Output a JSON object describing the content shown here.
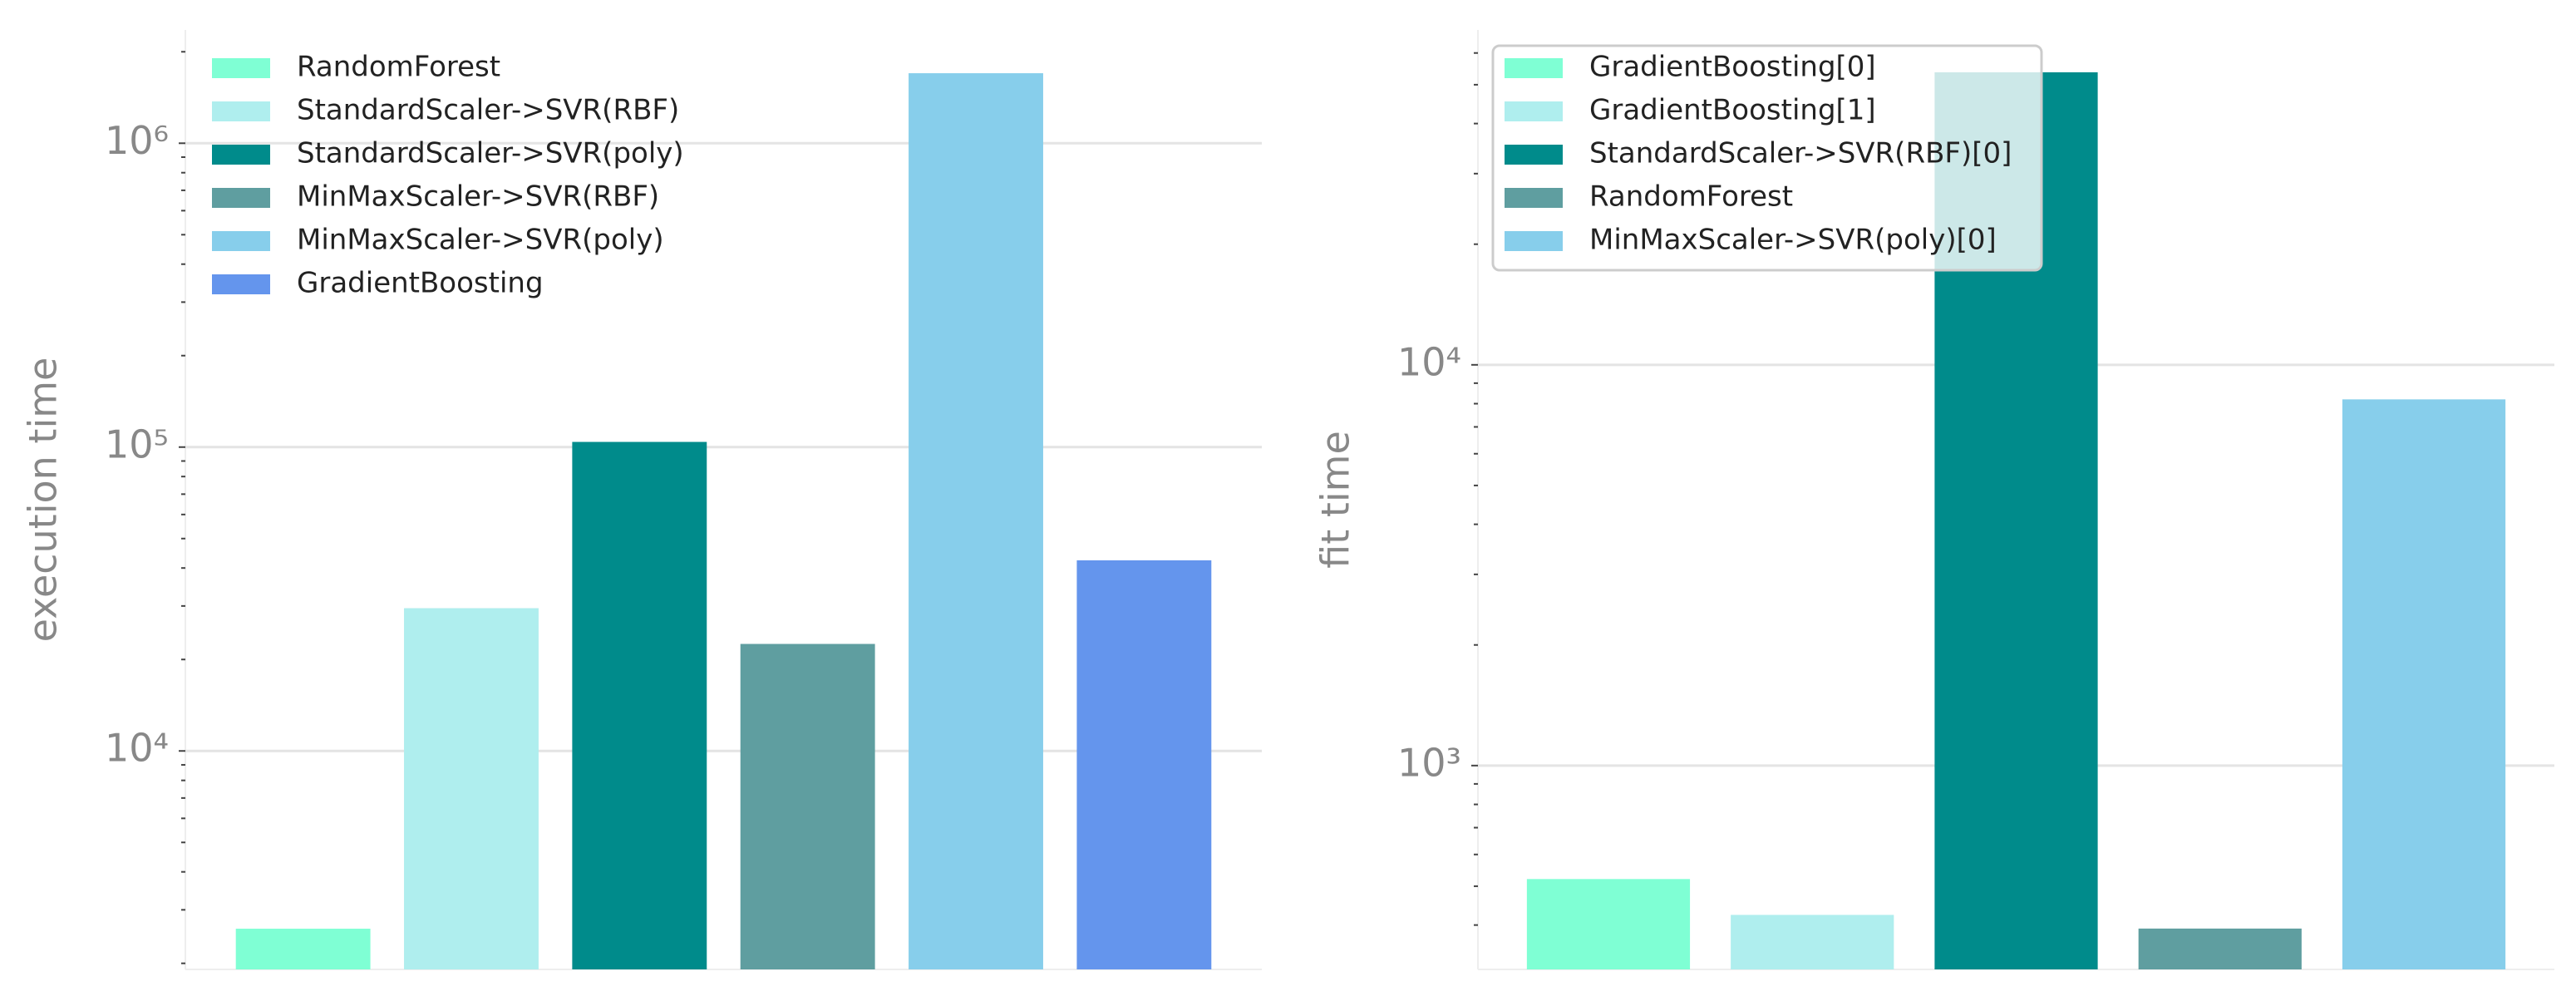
{
  "chart_data": [
    {
      "type": "bar",
      "ylabel": "execution time",
      "log_scale": true,
      "grid": true,
      "legend": "upper left",
      "legend_frame": false,
      "categories": [
        "RandomForest",
        "StandardScaler->SVR(RBF)",
        "StandardScaler->SVR(poly)",
        "MinMaxScaler->SVR(RBF)",
        "MinMaxScaler->SVR(poly)",
        "GradientBoosting"
      ],
      "values": [
        2600,
        29500,
        104000,
        22500,
        1700000,
        42400
      ],
      "colors": [
        "#7fffd4",
        "#afeeee",
        "#008b8b",
        "#5f9ea0",
        "#87ceeb",
        "#6495ed"
      ],
      "ylim": [
        1910,
        2360000
      ],
      "yticks": [
        {
          "value": 10000,
          "label": "10⁴"
        },
        {
          "value": 100000,
          "label": "10⁵"
        },
        {
          "value": 1000000,
          "label": "10⁶"
        }
      ],
      "minor_yticks": [
        2000,
        3000,
        4000,
        5000,
        6000,
        7000,
        8000,
        9000,
        20000,
        30000,
        40000,
        50000,
        60000,
        70000,
        80000,
        90000,
        200000,
        300000,
        400000,
        500000,
        600000,
        700000,
        800000,
        900000,
        2000000
      ]
    },
    {
      "type": "bar",
      "ylabel": "fit time",
      "log_scale": true,
      "grid": true,
      "legend": "upper left",
      "legend_frame": true,
      "categories": [
        "GradientBoosting[0]",
        "GradientBoosting[1]",
        "StandardScaler->SVR(RBF)[0]",
        "RandomForest",
        "MinMaxScaler->SVR(poly)[0]"
      ],
      "values": [
        521,
        424,
        53700,
        392,
        8200
      ],
      "colors": [
        "#7fffd4",
        "#afeeee",
        "#008b8b",
        "#5f9ea0",
        "#87ceeb"
      ],
      "ylim": [
        310,
        68500
      ],
      "yticks": [
        {
          "value": 1000,
          "label": "10³"
        },
        {
          "value": 10000,
          "label": "10⁴"
        }
      ],
      "minor_yticks": [
        400,
        500,
        600,
        700,
        800,
        900,
        2000,
        3000,
        4000,
        5000,
        6000,
        7000,
        8000,
        9000,
        20000,
        30000,
        40000,
        50000,
        60000
      ]
    }
  ]
}
